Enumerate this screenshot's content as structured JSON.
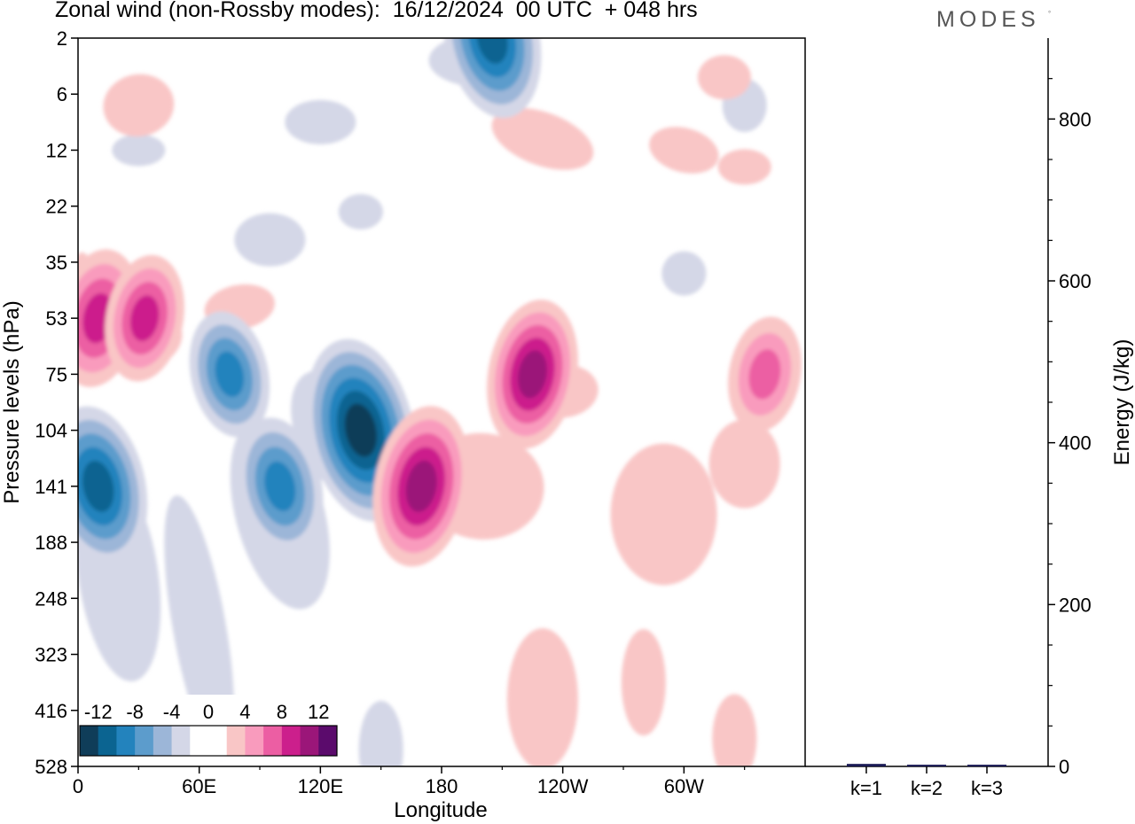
{
  "title": "Zonal wind (non-Rossby modes):  16/12/2024  00 UTC  + 048 hrs",
  "brand": "MODES",
  "brand_mark": "°",
  "colors": {
    "levels": [
      "#0f3d59",
      "#0b6491",
      "#2383bd",
      "#5c9ccc",
      "#9cb6d8",
      "#d4d7e7",
      "#ffffff",
      "#ffffff",
      "#f9c6c6",
      "#f99bbd",
      "#ec5ea3",
      "#cc1f8c",
      "#9b1679",
      "#5b0b6c"
    ],
    "frame": "#000000"
  },
  "chart_data": [
    {
      "type": "heatmap",
      "title": "Zonal wind (non-Rossby modes):  16/12/2024  00 UTC  + 048 hrs",
      "xlabel": "Longitude",
      "ylabel": "Pressure levels (hPa)",
      "x_ticks": [
        "0",
        "60E",
        "120E",
        "180",
        "120W",
        "60W"
      ],
      "y_ticks": [
        "2",
        "6",
        "12",
        "22",
        "35",
        "53",
        "75",
        "104",
        "141",
        "188",
        "248",
        "323",
        "416",
        "528"
      ],
      "colorbar": {
        "tick_labels": [
          "-12",
          "-8",
          "-4",
          "0",
          "4",
          "8",
          "12"
        ],
        "ticks": [
          -12,
          -8,
          -4,
          0,
          4,
          8,
          12
        ],
        "range": [
          -14,
          14
        ],
        "step": 2
      },
      "features": [
        {
          "lon": 10,
          "plev": "141",
          "value": -11
        },
        {
          "lon": 100,
          "plev": "141",
          "value": -9
        },
        {
          "lon": 140,
          "plev": "104",
          "value": -13
        },
        {
          "lon": 75,
          "plev": "75",
          "value": -8
        },
        {
          "lon": 205,
          "plev": "2",
          "value": -11
        },
        {
          "lon": 170,
          "plev": "141",
          "value": 11
        },
        {
          "lon": 225,
          "plev": "75",
          "value": 10
        },
        {
          "lon": 10,
          "plev": "53",
          "value": 9
        },
        {
          "lon": 33,
          "plev": "53",
          "value": 8
        },
        {
          "lon": 340,
          "plev": "75",
          "value": 7
        }
      ]
    },
    {
      "type": "bar",
      "title": "",
      "xlabel": "",
      "ylabel": "Energy (J/kg)",
      "categories": [
        "k=1",
        "k=2",
        "k=3"
      ],
      "values": [
        2,
        1,
        1
      ],
      "ylim": [
        0,
        900
      ],
      "y_ticks": [
        "0",
        "200",
        "400",
        "600",
        "800"
      ]
    }
  ]
}
